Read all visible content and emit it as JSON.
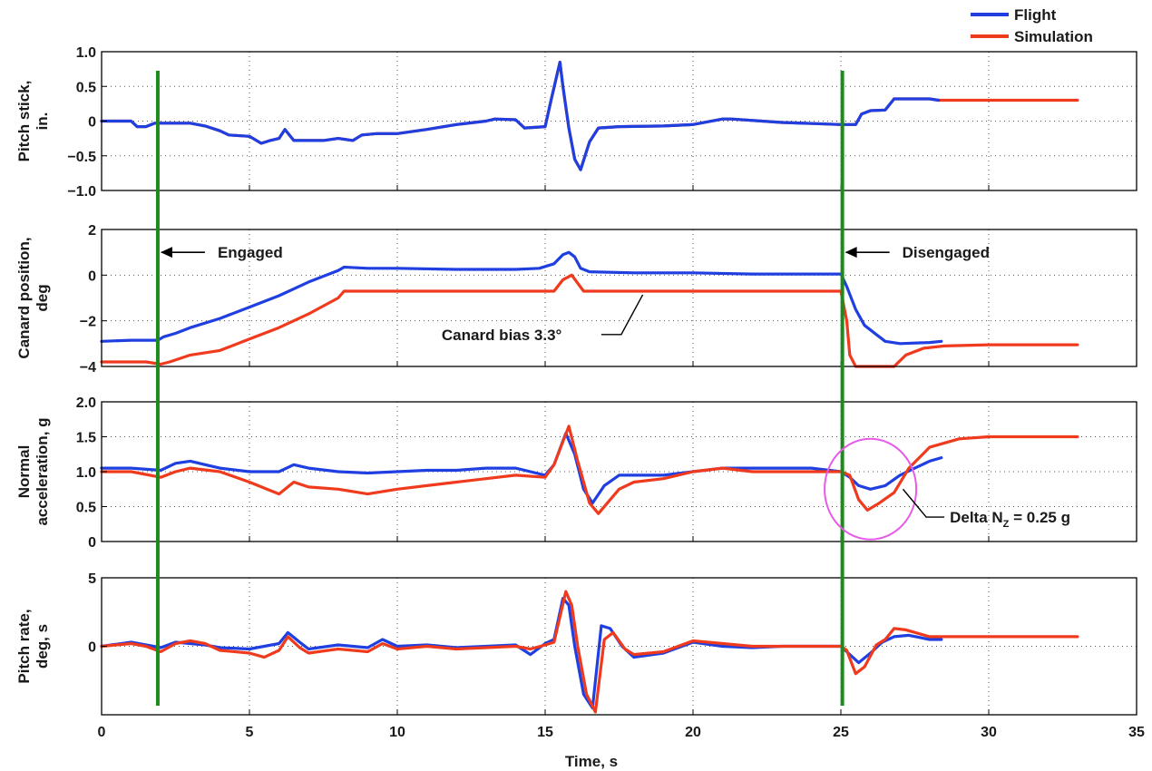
{
  "colors": {
    "flight": "#1f3fe0",
    "simulation": "#f03a1e",
    "marker": "#1e8a1e",
    "highlight": "#e85ae8"
  },
  "legend": {
    "flight": "Flight",
    "simulation": "Simulation"
  },
  "chart_data": [
    {
      "type": "line",
      "ylabel_lines": [
        "Pitch stick,",
        "in."
      ],
      "ylim": [
        -1.0,
        1.0
      ],
      "yticks": [
        -1.0,
        -0.5,
        0,
        0.5,
        1.0
      ],
      "ytick_labels": [
        "−1.0",
        "−0.5",
        "0",
        "0.5",
        "1.0"
      ],
      "xlim": [
        0,
        35
      ],
      "grid": true,
      "series": [
        {
          "name": "Simulation",
          "color_key": "simulation",
          "x": [
            0,
            1.0,
            1.2,
            1.5,
            1.8,
            2.0,
            3.0,
            3.5,
            4.0,
            4.3,
            5.0,
            5.4,
            5.7,
            6.0,
            6.2,
            6.5,
            6.8,
            7.5,
            8.0,
            8.5,
            8.8,
            9.3,
            10.0,
            11.0,
            12.0,
            13.0,
            13.3,
            14.0,
            14.3,
            15.0,
            15.2,
            15.5,
            15.6,
            15.8,
            16.0,
            16.2,
            16.5,
            16.8,
            17.5,
            19.0,
            20.0,
            21.0,
            21.3,
            23.0,
            25.0,
            25.5,
            25.7,
            26.0,
            26.5,
            26.8,
            28.0,
            28.3,
            33.0
          ],
          "y": [
            0,
            0,
            -0.08,
            -0.08,
            -0.03,
            -0.03,
            -0.03,
            -0.07,
            -0.14,
            -0.2,
            -0.22,
            -0.32,
            -0.28,
            -0.25,
            -0.12,
            -0.28,
            -0.28,
            -0.28,
            -0.25,
            -0.28,
            -0.2,
            -0.18,
            -0.18,
            -0.12,
            -0.05,
            0,
            0.03,
            0.02,
            -0.1,
            -0.08,
            0.3,
            0.85,
            0.5,
            -0.1,
            -0.55,
            -0.7,
            -0.3,
            -0.1,
            -0.08,
            -0.07,
            -0.05,
            0.03,
            0.03,
            -0.02,
            -0.05,
            -0.05,
            0.1,
            0.15,
            0.16,
            0.32,
            0.32,
            0.3,
            0.3
          ]
        },
        {
          "name": "Flight",
          "color_key": "flight",
          "x": [
            0,
            1.0,
            1.2,
            1.5,
            1.8,
            2.0,
            3.0,
            3.5,
            4.0,
            4.3,
            5.0,
            5.4,
            5.7,
            6.0,
            6.2,
            6.5,
            6.8,
            7.5,
            8.0,
            8.5,
            8.8,
            9.3,
            10.0,
            11.0,
            12.0,
            13.0,
            13.3,
            14.0,
            14.3,
            15.0,
            15.2,
            15.5,
            15.6,
            15.8,
            16.0,
            16.2,
            16.5,
            16.8,
            17.5,
            19.0,
            20.0,
            21.0,
            21.3,
            23.0,
            25.0,
            25.5,
            25.7,
            26.0,
            26.5,
            26.8,
            28.0,
            28.3
          ],
          "y": [
            0,
            0,
            -0.08,
            -0.08,
            -0.03,
            -0.03,
            -0.03,
            -0.07,
            -0.14,
            -0.2,
            -0.22,
            -0.32,
            -0.28,
            -0.25,
            -0.12,
            -0.28,
            -0.28,
            -0.28,
            -0.25,
            -0.28,
            -0.2,
            -0.18,
            -0.18,
            -0.12,
            -0.05,
            0,
            0.03,
            0.02,
            -0.1,
            -0.08,
            0.3,
            0.85,
            0.5,
            -0.1,
            -0.55,
            -0.7,
            -0.3,
            -0.1,
            -0.08,
            -0.07,
            -0.05,
            0.03,
            0.03,
            -0.02,
            -0.05,
            -0.05,
            0.1,
            0.15,
            0.16,
            0.32,
            0.32,
            0.3
          ]
        }
      ]
    },
    {
      "type": "line",
      "ylabel_lines": [
        "Canard position,",
        "deg"
      ],
      "ylim": [
        -4,
        2
      ],
      "yticks": [
        -4,
        -2,
        0,
        2
      ],
      "ytick_labels": [
        "−4",
        "−2",
        "0",
        "2"
      ],
      "xlim": [
        0,
        35
      ],
      "grid": true,
      "series": [
        {
          "name": "Flight",
          "color_key": "flight",
          "x": [
            0,
            1.0,
            1.9,
            2.1,
            2.5,
            3.0,
            4.0,
            5.0,
            6.0,
            7.0,
            8.0,
            8.2,
            9.0,
            10.0,
            12.0,
            14.0,
            14.8,
            15.3,
            15.6,
            15.8,
            16.0,
            16.2,
            16.5,
            18.0,
            20.0,
            22.0,
            24.0,
            25.0,
            25.2,
            25.5,
            25.8,
            26.2,
            26.5,
            27.0,
            28.0,
            28.4
          ],
          "y": [
            -2.9,
            -2.85,
            -2.85,
            -2.7,
            -2.55,
            -2.3,
            -1.9,
            -1.4,
            -0.9,
            -0.3,
            0.2,
            0.35,
            0.3,
            0.3,
            0.25,
            0.25,
            0.3,
            0.5,
            0.9,
            1.0,
            0.8,
            0.3,
            0.15,
            0.1,
            0.1,
            0.05,
            0.05,
            0.05,
            -0.5,
            -1.5,
            -2.2,
            -2.6,
            -2.9,
            -3.0,
            -2.95,
            -2.9
          ]
        },
        {
          "name": "Simulation",
          "color_key": "simulation",
          "x": [
            0,
            1.5,
            2.0,
            2.3,
            3.0,
            4.0,
            5.0,
            6.0,
            7.0,
            8.0,
            8.2,
            10.0,
            12.0,
            14.0,
            15.3,
            15.6,
            15.9,
            16.3,
            18.0,
            20.0,
            22.0,
            24.0,
            25.0,
            25.2,
            25.3,
            25.5,
            26.0,
            26.8,
            27.2,
            27.8,
            28.5,
            30.0,
            33.0
          ],
          "y": [
            -3.8,
            -3.8,
            -3.9,
            -3.8,
            -3.5,
            -3.3,
            -2.8,
            -2.3,
            -1.7,
            -1.0,
            -0.7,
            -0.7,
            -0.7,
            -0.7,
            -0.7,
            -0.2,
            0.0,
            -0.7,
            -0.7,
            -0.7,
            -0.7,
            -0.7,
            -0.7,
            -2.0,
            -3.5,
            -4.0,
            -4.0,
            -4.0,
            -3.5,
            -3.2,
            -3.1,
            -3.05,
            -3.05
          ]
        }
      ]
    },
    {
      "type": "line",
      "ylabel_lines": [
        "Normal",
        "acceleration, g"
      ],
      "ylim": [
        0,
        2.0
      ],
      "yticks": [
        0,
        0.5,
        1.0,
        1.5,
        2.0
      ],
      "ytick_labels": [
        "0",
        "0.5",
        "1.0",
        "1.5",
        "2.0"
      ],
      "xlim": [
        0,
        35
      ],
      "grid": true,
      "series": [
        {
          "name": "Flight",
          "color_key": "flight",
          "x": [
            0,
            1.0,
            2.0,
            2.5,
            3.0,
            3.5,
            4.0,
            5.0,
            6.0,
            6.5,
            7.0,
            8.0,
            9.0,
            10.0,
            11.0,
            12.0,
            13.0,
            14.0,
            14.5,
            15.0,
            15.3,
            15.7,
            16.0,
            16.3,
            16.6,
            17.0,
            17.5,
            18.0,
            19.0,
            20.0,
            21.0,
            22.0,
            23.0,
            24.0,
            25.0,
            25.3,
            25.6,
            26.0,
            26.5,
            27.0,
            27.5,
            28.0,
            28.4
          ],
          "y": [
            1.05,
            1.05,
            1.02,
            1.12,
            1.15,
            1.1,
            1.05,
            1.0,
            1.0,
            1.1,
            1.05,
            1.0,
            0.98,
            1.0,
            1.02,
            1.02,
            1.05,
            1.05,
            1.0,
            0.95,
            1.1,
            1.55,
            1.25,
            0.75,
            0.55,
            0.8,
            0.95,
            0.95,
            0.95,
            1.0,
            1.05,
            1.05,
            1.05,
            1.05,
            1.0,
            0.92,
            0.8,
            0.75,
            0.8,
            0.95,
            1.05,
            1.15,
            1.2
          ]
        },
        {
          "name": "Simulation",
          "color_key": "simulation",
          "x": [
            0,
            1.0,
            2.0,
            2.5,
            3.0,
            4.0,
            5.0,
            6.0,
            6.5,
            7.0,
            8.0,
            9.0,
            10.0,
            11.0,
            12.0,
            13.0,
            14.0,
            15.0,
            15.3,
            15.8,
            16.1,
            16.5,
            16.8,
            17.5,
            18.0,
            19.0,
            20.0,
            21.0,
            22.0,
            23.0,
            24.0,
            25.0,
            25.3,
            25.6,
            25.9,
            26.3,
            26.8,
            27.3,
            28.0,
            29.0,
            30.0,
            33.0
          ],
          "y": [
            1.0,
            1.0,
            0.92,
            1.0,
            1.05,
            1.0,
            0.85,
            0.68,
            0.85,
            0.78,
            0.75,
            0.68,
            0.75,
            0.8,
            0.85,
            0.9,
            0.95,
            0.92,
            1.1,
            1.65,
            1.15,
            0.55,
            0.4,
            0.75,
            0.85,
            0.9,
            1.0,
            1.05,
            1.0,
            1.0,
            1.0,
            1.0,
            0.95,
            0.6,
            0.45,
            0.55,
            0.7,
            1.05,
            1.35,
            1.47,
            1.5,
            1.5
          ]
        }
      ]
    },
    {
      "type": "line",
      "ylabel_lines": [
        "Pitch rate,",
        "deg, s"
      ],
      "ylim": [
        -5,
        5
      ],
      "yticks": [
        0,
        5
      ],
      "ytick_labels": [
        "0",
        "5"
      ],
      "xlim": [
        0,
        35
      ],
      "xticks": [
        0,
        5,
        10,
        15,
        20,
        25,
        30,
        35
      ],
      "xtick_labels": [
        "0",
        "5",
        "10",
        "15",
        "20",
        "25",
        "30",
        "35"
      ],
      "xlabel": "Time, s",
      "grid": true,
      "series": [
        {
          "name": "Flight",
          "color_key": "flight",
          "x": [
            0,
            1.0,
            1.5,
            2.0,
            2.5,
            3.0,
            3.5,
            4.0,
            5.0,
            5.5,
            6.0,
            6.3,
            6.7,
            7.0,
            8.0,
            9.0,
            9.5,
            10.0,
            11.0,
            12.0,
            13.0,
            14.0,
            14.5,
            15.0,
            15.3,
            15.6,
            15.8,
            16.0,
            16.3,
            16.6,
            16.9,
            17.2,
            17.6,
            18.0,
            19.0,
            20.0,
            21.0,
            22.0,
            23.0,
            24.0,
            25.0,
            25.3,
            25.6,
            26.0,
            26.4,
            26.8,
            27.3,
            28.0,
            28.4
          ],
          "y": [
            0,
            0.3,
            0.1,
            -0.1,
            0.3,
            0.2,
            0.1,
            -0.1,
            -0.2,
            0,
            0.2,
            1.0,
            0.3,
            -0.2,
            0.1,
            -0.1,
            0.5,
            0,
            0.1,
            -0.1,
            0,
            0.1,
            -0.6,
            0.2,
            0.5,
            3.5,
            3.0,
            0,
            -3.5,
            -4.5,
            1.5,
            1.3,
            0,
            -0.8,
            -0.5,
            0.3,
            0,
            -0.1,
            0,
            0,
            0,
            -0.6,
            -1.2,
            -0.5,
            0.3,
            0.7,
            0.8,
            0.5,
            0.5
          ]
        },
        {
          "name": "Simulation",
          "color_key": "simulation",
          "x": [
            0,
            1.0,
            1.5,
            2.0,
            2.5,
            3.0,
            3.5,
            4.0,
            5.0,
            5.5,
            6.0,
            6.3,
            6.7,
            7.0,
            8.0,
            9.0,
            9.5,
            10.0,
            11.0,
            12.0,
            13.0,
            14.0,
            14.5,
            15.0,
            15.3,
            15.7,
            15.9,
            16.1,
            16.4,
            16.7,
            17.0,
            17.3,
            17.7,
            18.0,
            19.0,
            20.0,
            21.0,
            22.0,
            23.0,
            24.0,
            25.0,
            25.2,
            25.5,
            25.8,
            26.2,
            26.5,
            26.8,
            27.2,
            28.0,
            29.0,
            30.0,
            33.0
          ],
          "y": [
            0,
            0.2,
            0,
            -0.4,
            0.2,
            0.4,
            0.2,
            -0.3,
            -0.5,
            -0.8,
            -0.3,
            0.7,
            -0.1,
            -0.5,
            -0.2,
            -0.4,
            0.2,
            -0.2,
            0,
            -0.2,
            -0.1,
            0,
            -0.2,
            0.1,
            0.3,
            4.0,
            3.0,
            0,
            -3.5,
            -4.8,
            0.5,
            1.0,
            -0.2,
            -0.6,
            -0.4,
            0.4,
            0.2,
            0,
            0,
            0,
            0,
            -0.3,
            -2.0,
            -1.5,
            0.1,
            0.5,
            1.3,
            1.2,
            0.7,
            0.7,
            0.7,
            0.7
          ]
        }
      ]
    }
  ],
  "event_markers": [
    {
      "x": 1.9,
      "label": "Engaged",
      "panel": 1,
      "label_y": 1.0
    },
    {
      "x": 25.05,
      "label": "Disengaged",
      "panel": 1,
      "label_y": 1.0
    }
  ],
  "annotations": [
    {
      "panel": 1,
      "text": "Canard bias 3.3°",
      "point_x": 18.3,
      "point_y": -0.7,
      "text_x": 11.5,
      "text_y": -2.6
    },
    {
      "panel": 2,
      "text": "Delta N",
      "sub": "Z",
      "text_after": " = 0.25 g",
      "point_x": 27.1,
      "point_y": 0.75,
      "text_x": 28.5,
      "text_y": 0.35
    }
  ],
  "highlight_circle": {
    "panel": 2,
    "cx": 26.0,
    "cy": 0.75,
    "rx_data": 1.55,
    "ry_data": 0.72
  }
}
